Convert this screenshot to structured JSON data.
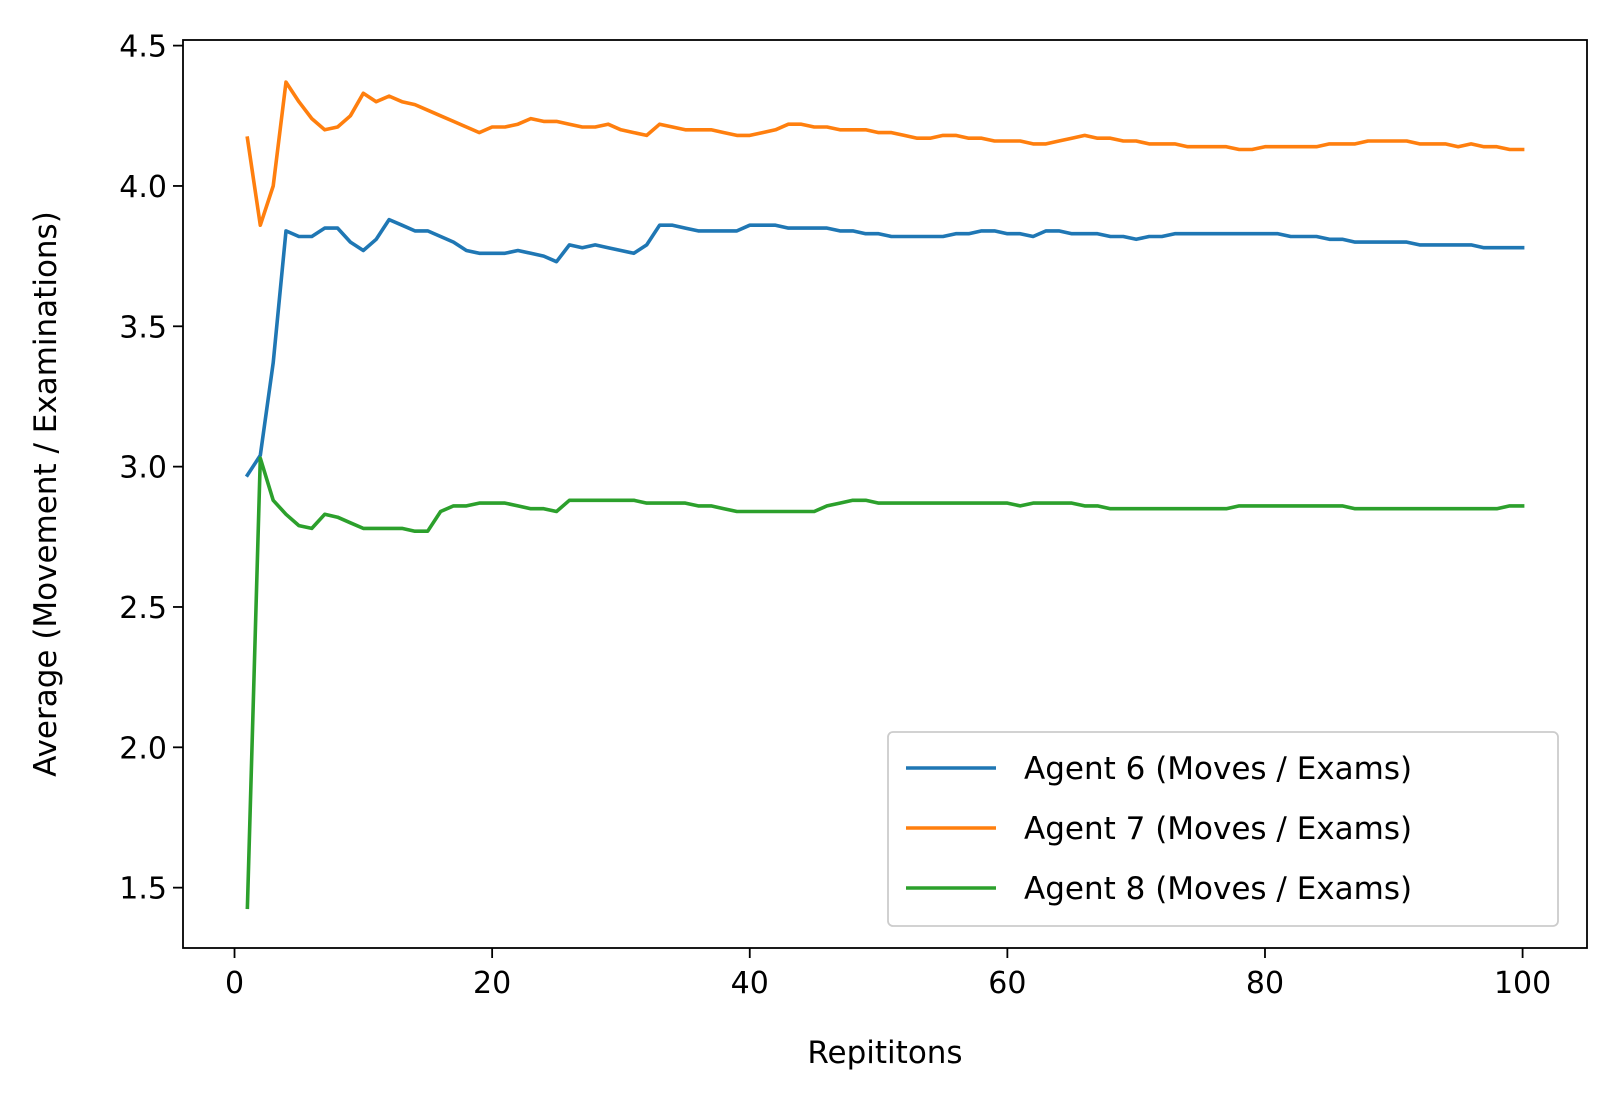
{
  "chart_data": {
    "type": "line",
    "title": "",
    "xlabel": "Repititons",
    "ylabel": "Average (Movement / Examinations)",
    "xlim": [
      -4,
      105
    ],
    "ylim": [
      1.285,
      4.52
    ],
    "xticks": [
      0,
      20,
      40,
      60,
      80,
      100
    ],
    "xtick_labels": [
      "0",
      "20",
      "40",
      "60",
      "80",
      "100"
    ],
    "yticks": [
      1.5,
      2.0,
      2.5,
      3.0,
      3.5,
      4.0,
      4.5
    ],
    "ytick_labels": [
      "1.5",
      "2.0",
      "2.5",
      "3.0",
      "3.5",
      "4.0",
      "4.5"
    ],
    "grid": false,
    "legend_position": "lower-right",
    "x": [
      1,
      2,
      3,
      4,
      5,
      6,
      7,
      8,
      9,
      10,
      11,
      12,
      13,
      14,
      15,
      16,
      17,
      18,
      19,
      20,
      21,
      22,
      23,
      24,
      25,
      26,
      27,
      28,
      29,
      30,
      31,
      32,
      33,
      34,
      35,
      36,
      37,
      38,
      39,
      40,
      41,
      42,
      43,
      44,
      45,
      46,
      47,
      48,
      49,
      50,
      51,
      52,
      53,
      54,
      55,
      56,
      57,
      58,
      59,
      60,
      61,
      62,
      63,
      64,
      65,
      66,
      67,
      68,
      69,
      70,
      71,
      72,
      73,
      74,
      75,
      76,
      77,
      78,
      79,
      80,
      81,
      82,
      83,
      84,
      85,
      86,
      87,
      88,
      89,
      90,
      91,
      92,
      93,
      94,
      95,
      96,
      97,
      98,
      99,
      100
    ],
    "series": [
      {
        "name": "Agent 6 (Moves / Exams)",
        "color": "#1f77b4",
        "values": [
          2.97,
          3.04,
          3.37,
          3.84,
          3.82,
          3.82,
          3.85,
          3.85,
          3.8,
          3.77,
          3.81,
          3.88,
          3.86,
          3.84,
          3.84,
          3.82,
          3.8,
          3.77,
          3.76,
          3.76,
          3.76,
          3.77,
          3.76,
          3.75,
          3.73,
          3.79,
          3.78,
          3.79,
          3.78,
          3.77,
          3.76,
          3.79,
          3.86,
          3.86,
          3.85,
          3.84,
          3.84,
          3.84,
          3.84,
          3.86,
          3.86,
          3.86,
          3.85,
          3.85,
          3.85,
          3.85,
          3.84,
          3.84,
          3.83,
          3.83,
          3.82,
          3.82,
          3.82,
          3.82,
          3.82,
          3.83,
          3.83,
          3.84,
          3.84,
          3.83,
          3.83,
          3.82,
          3.84,
          3.84,
          3.83,
          3.83,
          3.83,
          3.82,
          3.82,
          3.81,
          3.82,
          3.82,
          3.83,
          3.83,
          3.83,
          3.83,
          3.83,
          3.83,
          3.83,
          3.83,
          3.83,
          3.82,
          3.82,
          3.82,
          3.81,
          3.81,
          3.8,
          3.8,
          3.8,
          3.8,
          3.8,
          3.79,
          3.79,
          3.79,
          3.79,
          3.79,
          3.78,
          3.78,
          3.78,
          3.78
        ]
      },
      {
        "name": "Agent 7 (Moves / Exams)",
        "color": "#ff7f0e",
        "values": [
          4.17,
          3.86,
          4.0,
          4.37,
          4.3,
          4.24,
          4.2,
          4.21,
          4.25,
          4.33,
          4.3,
          4.32,
          4.3,
          4.29,
          4.27,
          4.25,
          4.23,
          4.21,
          4.19,
          4.21,
          4.21,
          4.22,
          4.24,
          4.23,
          4.23,
          4.22,
          4.21,
          4.21,
          4.22,
          4.2,
          4.19,
          4.18,
          4.22,
          4.21,
          4.2,
          4.2,
          4.2,
          4.19,
          4.18,
          4.18,
          4.19,
          4.2,
          4.22,
          4.22,
          4.21,
          4.21,
          4.2,
          4.2,
          4.2,
          4.19,
          4.19,
          4.18,
          4.17,
          4.17,
          4.18,
          4.18,
          4.17,
          4.17,
          4.16,
          4.16,
          4.16,
          4.15,
          4.15,
          4.16,
          4.17,
          4.18,
          4.17,
          4.17,
          4.16,
          4.16,
          4.15,
          4.15,
          4.15,
          4.14,
          4.14,
          4.14,
          4.14,
          4.13,
          4.13,
          4.14,
          4.14,
          4.14,
          4.14,
          4.14,
          4.15,
          4.15,
          4.15,
          4.16,
          4.16,
          4.16,
          4.16,
          4.15,
          4.15,
          4.15,
          4.14,
          4.15,
          4.14,
          4.14,
          4.13,
          4.13
        ]
      },
      {
        "name": "Agent 8 (Moves / Exams)",
        "color": "#2ca02c",
        "values": [
          1.43,
          3.03,
          2.88,
          2.83,
          2.79,
          2.78,
          2.83,
          2.82,
          2.8,
          2.78,
          2.78,
          2.78,
          2.78,
          2.77,
          2.77,
          2.84,
          2.86,
          2.86,
          2.87,
          2.87,
          2.87,
          2.86,
          2.85,
          2.85,
          2.84,
          2.88,
          2.88,
          2.88,
          2.88,
          2.88,
          2.88,
          2.87,
          2.87,
          2.87,
          2.87,
          2.86,
          2.86,
          2.85,
          2.84,
          2.84,
          2.84,
          2.84,
          2.84,
          2.84,
          2.84,
          2.86,
          2.87,
          2.88,
          2.88,
          2.87,
          2.87,
          2.87,
          2.87,
          2.87,
          2.87,
          2.87,
          2.87,
          2.87,
          2.87,
          2.87,
          2.86,
          2.87,
          2.87,
          2.87,
          2.87,
          2.86,
          2.86,
          2.85,
          2.85,
          2.85,
          2.85,
          2.85,
          2.85,
          2.85,
          2.85,
          2.85,
          2.85,
          2.86,
          2.86,
          2.86,
          2.86,
          2.86,
          2.86,
          2.86,
          2.86,
          2.86,
          2.85,
          2.85,
          2.85,
          2.85,
          2.85,
          2.85,
          2.85,
          2.85,
          2.85,
          2.85,
          2.85,
          2.85,
          2.86,
          2.86
        ]
      }
    ]
  }
}
